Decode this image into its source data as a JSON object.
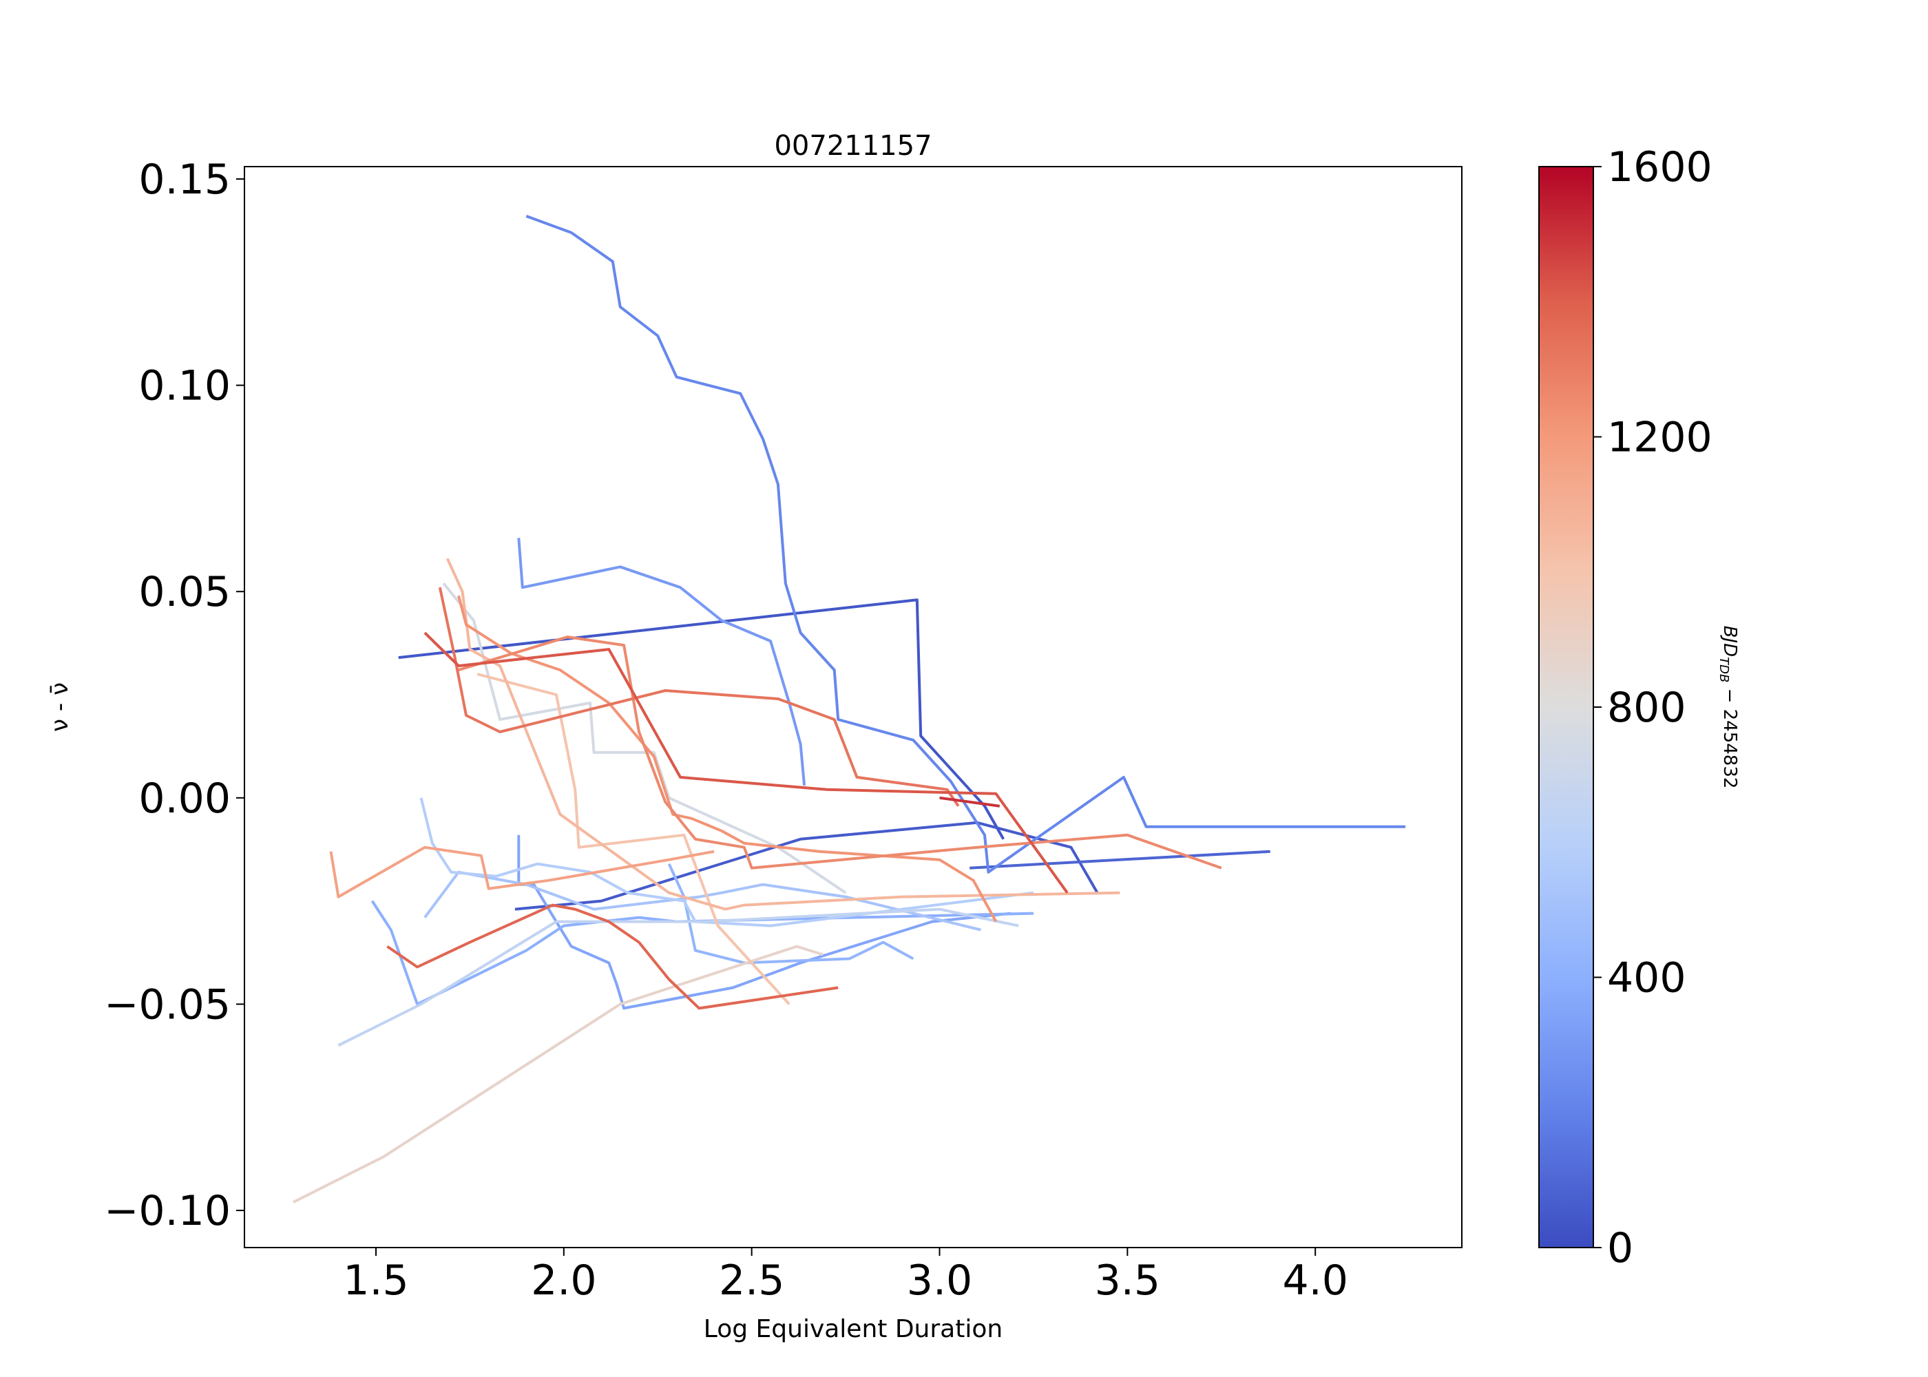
{
  "chart_data": {
    "type": "line",
    "title": "007211157",
    "xlabel": "Log Equivalent Duration",
    "ylabel": "ν - ν̄",
    "xlim": [
      1.15,
      4.39
    ],
    "ylim": [
      -0.109,
      0.153
    ],
    "xticks": [
      1.5,
      2.0,
      2.5,
      3.0,
      3.5,
      4.0
    ],
    "xtick_labels": [
      "1.5",
      "2.0",
      "2.5",
      "3.0",
      "3.5",
      "4.0"
    ],
    "yticks": [
      0.15,
      0.1,
      0.05,
      0.0,
      -0.05,
      -0.1
    ],
    "ytick_labels": [
      "0.15",
      "0.10",
      "0.05",
      "0.00",
      "−0.05",
      "−0.10"
    ],
    "grid": false,
    "colorbar": {
      "label": "BJD_TDB − 2454832",
      "label_main": "BJD",
      "label_sub": "TDB",
      "label_rest": " − 2454832",
      "colormap": "coolwarm",
      "range": [
        0,
        1600
      ],
      "ticks": [
        0,
        400,
        800,
        1200,
        1600
      ],
      "tick_labels": [
        "0",
        "400",
        "800",
        "1200",
        "1600"
      ]
    },
    "series": [
      {
        "t": 40,
        "x": [
          1.56,
          2.94,
          2.95,
          3.12,
          3.17
        ],
        "y": [
          0.034,
          0.048,
          0.015,
          -0.002,
          -0.01
        ]
      },
      {
        "t": 50,
        "x": [
          1.87,
          2.1,
          2.63,
          3.1,
          3.35,
          3.42
        ],
        "y": [
          -0.027,
          -0.025,
          -0.01,
          -0.006,
          -0.012,
          -0.023
        ]
      },
      {
        "t": 90,
        "x": [
          3.08,
          3.88
        ],
        "y": [
          -0.017,
          -0.013
        ]
      },
      {
        "t": 220,
        "x": [
          1.9,
          2.02,
          2.13,
          2.15,
          2.25,
          2.3,
          2.47,
          2.53,
          2.57,
          2.59,
          2.63,
          2.72,
          2.73,
          2.93,
          3.03,
          3.12,
          3.13,
          3.49,
          3.55,
          4.24
        ],
        "y": [
          0.141,
          0.137,
          0.13,
          0.119,
          0.112,
          0.102,
          0.098,
          0.087,
          0.076,
          0.052,
          0.04,
          0.031,
          0.019,
          0.014,
          0.004,
          -0.009,
          -0.018,
          0.005,
          -0.007,
          -0.007
        ]
      },
      {
        "t": 300,
        "x": [
          1.88,
          1.89,
          2.15,
          2.31,
          2.42,
          2.55,
          2.6,
          2.63,
          2.64
        ],
        "y": [
          0.063,
          0.051,
          0.056,
          0.051,
          0.043,
          0.038,
          0.023,
          0.013,
          0.003
        ]
      },
      {
        "t": 350,
        "x": [
          1.88,
          1.88,
          1.92,
          2.02,
          2.12,
          2.14,
          2.16,
          2.45,
          2.63,
          2.98,
          3.19
        ],
        "y": [
          -0.009,
          -0.021,
          -0.021,
          -0.036,
          -0.04,
          -0.045,
          -0.051,
          -0.046,
          -0.04,
          -0.03,
          -0.028
        ]
      },
      {
        "t": 400,
        "x": [
          1.49,
          1.54,
          1.61,
          1.9,
          2.0,
          2.2,
          2.3,
          3.25
        ],
        "y": [
          -0.025,
          -0.032,
          -0.05,
          -0.037,
          -0.031,
          -0.029,
          -0.03,
          -0.028
        ]
      },
      {
        "t": 430,
        "x": [
          2.28,
          2.32,
          2.35,
          2.48,
          2.76,
          2.85,
          2.93
        ],
        "y": [
          -0.016,
          -0.024,
          -0.037,
          -0.04,
          -0.039,
          -0.035,
          -0.039
        ]
      },
      {
        "t": 520,
        "x": [
          1.63,
          1.72,
          1.9,
          2.08,
          2.36,
          2.42,
          2.53,
          2.75,
          3.11
        ],
        "y": [
          -0.029,
          -0.018,
          -0.021,
          -0.027,
          -0.024,
          -0.023,
          -0.021,
          -0.024,
          -0.032
        ]
      },
      {
        "t": 580,
        "x": [
          1.62,
          1.65,
          1.7,
          1.82,
          1.93,
          2.07,
          2.17,
          2.32,
          2.35,
          2.55,
          3.25
        ],
        "y": [
          0.0,
          -0.011,
          -0.018,
          -0.019,
          -0.016,
          -0.018,
          -0.023,
          -0.025,
          -0.03,
          -0.031,
          -0.023
        ]
      },
      {
        "t": 650,
        "x": [
          1.4,
          1.62,
          1.98,
          2.38,
          3.0,
          3.21
        ],
        "y": [
          -0.06,
          -0.05,
          -0.03,
          -0.03,
          -0.027,
          -0.031
        ]
      },
      {
        "t": 750,
        "x": [
          1.68,
          1.76,
          1.83,
          2.07,
          2.08,
          2.24,
          2.28,
          2.57,
          2.75
        ],
        "y": [
          0.052,
          0.043,
          0.019,
          0.023,
          0.011,
          0.011,
          0.0,
          -0.012,
          -0.023
        ]
      },
      {
        "t": 880,
        "x": [
          1.28,
          1.52,
          2.15,
          2.62,
          2.69
        ],
        "y": [
          -0.098,
          -0.087,
          -0.05,
          -0.036,
          -0.038
        ]
      },
      {
        "t": 1000,
        "x": [
          1.77,
          1.98,
          2.03,
          2.04,
          2.32,
          2.41,
          2.6
        ],
        "y": [
          0.03,
          0.025,
          0.002,
          -0.012,
          -0.009,
          -0.031,
          -0.05
        ]
      },
      {
        "t": 1060,
        "x": [
          1.69,
          1.73,
          1.75,
          1.83,
          1.99,
          2.28,
          2.43,
          2.48,
          2.9,
          3.48
        ],
        "y": [
          0.058,
          0.05,
          0.036,
          0.032,
          -0.004,
          -0.023,
          -0.027,
          -0.026,
          -0.024,
          -0.023
        ]
      },
      {
        "t": 1160,
        "x": [
          1.38,
          1.4,
          1.63,
          1.78,
          1.8,
          1.96,
          2.28,
          2.4
        ],
        "y": [
          -0.013,
          -0.024,
          -0.012,
          -0.014,
          -0.022,
          -0.02,
          -0.015,
          -0.013
        ]
      },
      {
        "t": 1220,
        "x": [
          1.72,
          1.74,
          1.86,
          1.99,
          2.12,
          2.24,
          2.29,
          2.34,
          2.42,
          2.48,
          2.68,
          3.0,
          3.09,
          3.15
        ],
        "y": [
          0.049,
          0.042,
          0.035,
          0.031,
          0.023,
          0.01,
          -0.004,
          -0.005,
          -0.008,
          -0.011,
          -0.013,
          -0.015,
          -0.02,
          -0.03
        ]
      },
      {
        "t": 1260,
        "x": [
          1.72,
          2.01,
          2.16,
          2.2,
          2.27,
          2.35,
          2.48,
          2.5,
          3.1,
          3.5,
          3.75
        ],
        "y": [
          0.031,
          0.039,
          0.037,
          0.016,
          -0.001,
          -0.01,
          -0.012,
          -0.017,
          -0.012,
          -0.009,
          -0.017
        ]
      },
      {
        "t": 1330,
        "x": [
          1.67,
          1.71,
          1.74,
          1.83,
          2.27,
          2.57,
          2.72,
          2.78,
          3.02,
          3.05
        ],
        "y": [
          0.051,
          0.034,
          0.02,
          0.016,
          0.026,
          0.024,
          0.019,
          0.005,
          0.002,
          -0.002
        ]
      },
      {
        "t": 1380,
        "x": [
          1.53,
          1.61,
          1.75,
          1.97,
          2.03,
          2.12,
          2.2,
          2.28,
          2.36,
          2.73
        ],
        "y": [
          -0.036,
          -0.041,
          -0.035,
          -0.026,
          -0.027,
          -0.03,
          -0.035,
          -0.044,
          -0.051,
          -0.046
        ]
      },
      {
        "t": 1420,
        "x": [
          1.63,
          1.72,
          2.12,
          2.31,
          2.7,
          3.15,
          3.34
        ],
        "y": [
          0.04,
          0.032,
          0.036,
          0.005,
          0.002,
          0.001,
          -0.023
        ]
      },
      {
        "t": 1500,
        "x": [
          3.0,
          3.16
        ],
        "y": [
          0.0,
          -0.002
        ]
      }
    ]
  }
}
